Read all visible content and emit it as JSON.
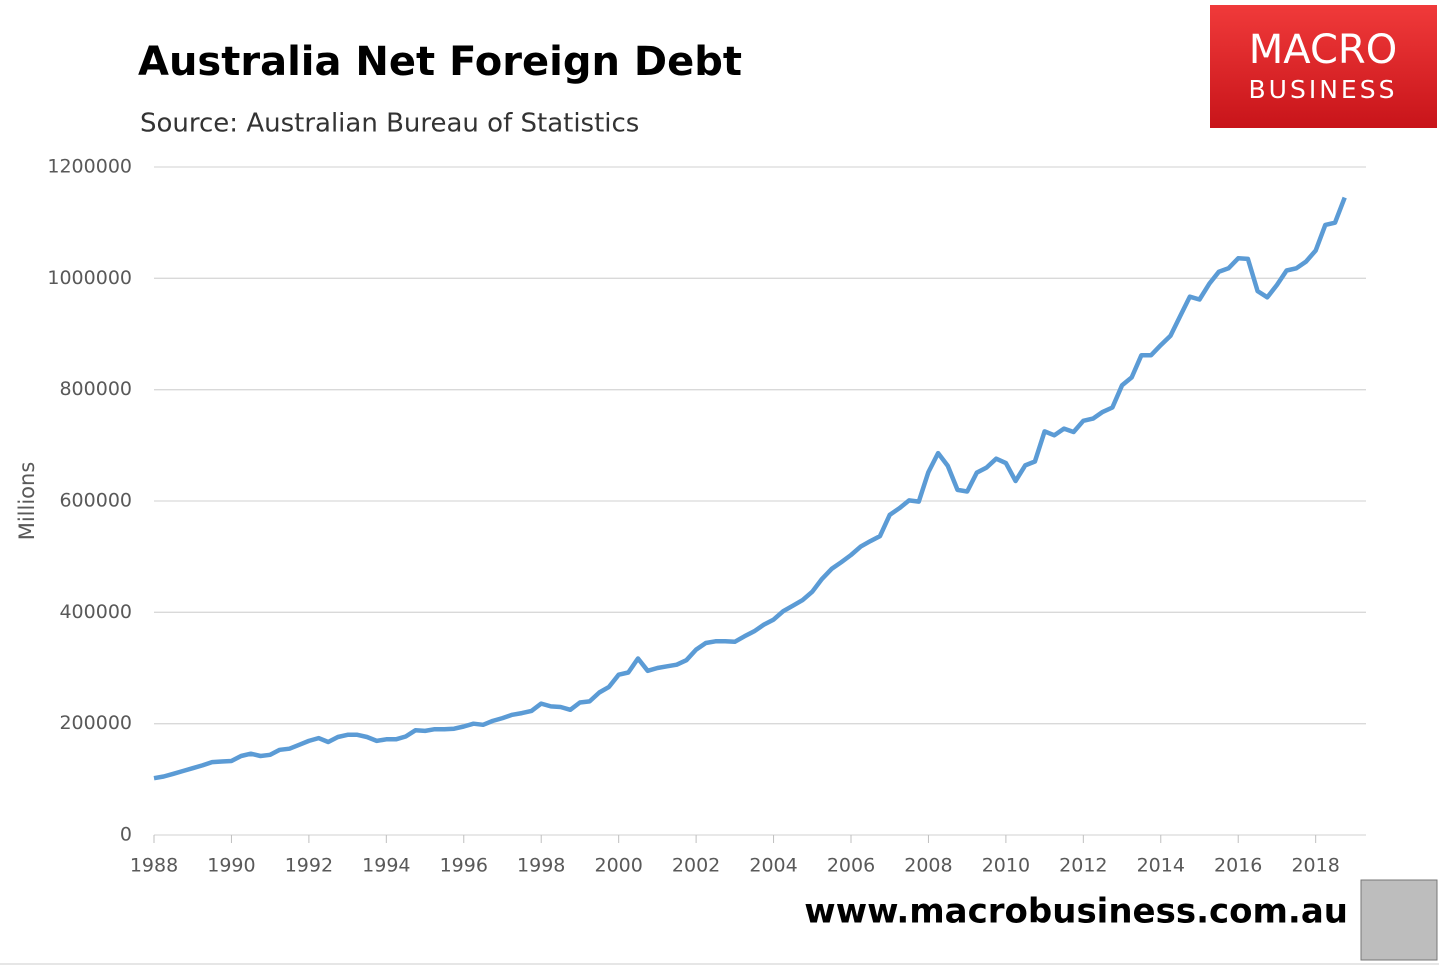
{
  "chart_data": {
    "type": "line",
    "title": "Australia Net Foreign Debt",
    "subtitle": "Source: Australian Bureau of Statistics",
    "y_label": "Millions",
    "logo": [
      "MACRO",
      "BUSINESS"
    ],
    "footer": "www.macrobusiness.com.au",
    "color": "#5b9bd5",
    "grid": true,
    "xlim": [
      1988,
      2019.3
    ],
    "xticks": [
      1988,
      1990,
      1992,
      1994,
      1996,
      1998,
      2000,
      2002,
      2004,
      2006,
      2008,
      2010,
      2012,
      2014,
      2016,
      2018
    ],
    "ylim": [
      0,
      1200000
    ],
    "yticks": [
      0,
      200000,
      400000,
      600000,
      800000,
      1000000,
      1200000
    ],
    "x": [
      1988,
      1988.25,
      1988.5,
      1988.75,
      1989,
      1989.25,
      1989.5,
      1989.75,
      1990,
      1990.25,
      1990.5,
      1990.75,
      1991,
      1991.25,
      1991.5,
      1991.75,
      1992,
      1992.25,
      1992.5,
      1992.75,
      1993,
      1993.25,
      1993.5,
      1993.75,
      1994,
      1994.25,
      1994.5,
      1994.75,
      1995,
      1995.25,
      1995.5,
      1995.75,
      1996,
      1996.25,
      1996.5,
      1996.75,
      1997,
      1997.25,
      1997.5,
      1997.75,
      1998,
      1998.25,
      1998.5,
      1998.75,
      1999,
      1999.25,
      1999.5,
      1999.75,
      2000,
      2000.25,
      2000.5,
      2000.75,
      2001,
      2001.25,
      2001.5,
      2001.75,
      2002,
      2002.25,
      2002.5,
      2002.75,
      2003,
      2003.25,
      2003.5,
      2003.75,
      2004,
      2004.25,
      2004.5,
      2004.75,
      2005,
      2005.25,
      2005.5,
      2005.75,
      2006,
      2006.25,
      2006.5,
      2006.75,
      2007,
      2007.25,
      2007.5,
      2007.75,
      2008,
      2008.25,
      2008.5,
      2008.75,
      2009,
      2009.25,
      2009.5,
      2009.75,
      2010,
      2010.25,
      2010.5,
      2010.75,
      2011,
      2011.25,
      2011.5,
      2011.75,
      2012,
      2012.25,
      2012.5,
      2012.75,
      2013,
      2013.25,
      2013.5,
      2013.75,
      2014,
      2014.25,
      2014.5,
      2014.75,
      2015,
      2015.25,
      2015.5,
      2015.75,
      2016,
      2016.25,
      2016.5,
      2016.75,
      2017,
      2017.25,
      2017.5,
      2017.75,
      2018,
      2018.25,
      2018.5,
      2018.75
    ],
    "values": [
      102000,
      105000,
      110000,
      115000,
      120000,
      125000,
      131000,
      132000,
      133000,
      142000,
      146000,
      142000,
      144000,
      153000,
      155000,
      162000,
      169000,
      174000,
      167000,
      176000,
      180000,
      180000,
      176000,
      169000,
      172000,
      172000,
      177000,
      188000,
      187000,
      190000,
      190000,
      191000,
      195000,
      200000,
      198000,
      205000,
      210000,
      216000,
      219000,
      223000,
      236000,
      231000,
      230000,
      225000,
      238000,
      240000,
      256000,
      266000,
      288000,
      292000,
      317000,
      295000,
      300000,
      303000,
      306000,
      314000,
      333000,
      345000,
      348000,
      348000,
      347000,
      357000,
      366000,
      378000,
      387000,
      402000,
      412000,
      422000,
      437000,
      460000,
      478000,
      490000,
      503000,
      518000,
      528000,
      537000,
      575000,
      587000,
      601000,
      599000,
      652000,
      686000,
      663000,
      620000,
      617000,
      651000,
      660000,
      676000,
      668000,
      636000,
      664000,
      671000,
      725000,
      718000,
      730000,
      724000,
      744000,
      748000,
      760000,
      768000,
      808000,
      822000,
      862000,
      862000,
      880000,
      897000,
      932000,
      967000,
      962000,
      990000,
      1012000,
      1018000,
      1036000,
      1035000,
      977000,
      966000,
      988000,
      1014000,
      1018000,
      1030000,
      1050000,
      1096000,
      1100000,
      1145000
    ]
  }
}
